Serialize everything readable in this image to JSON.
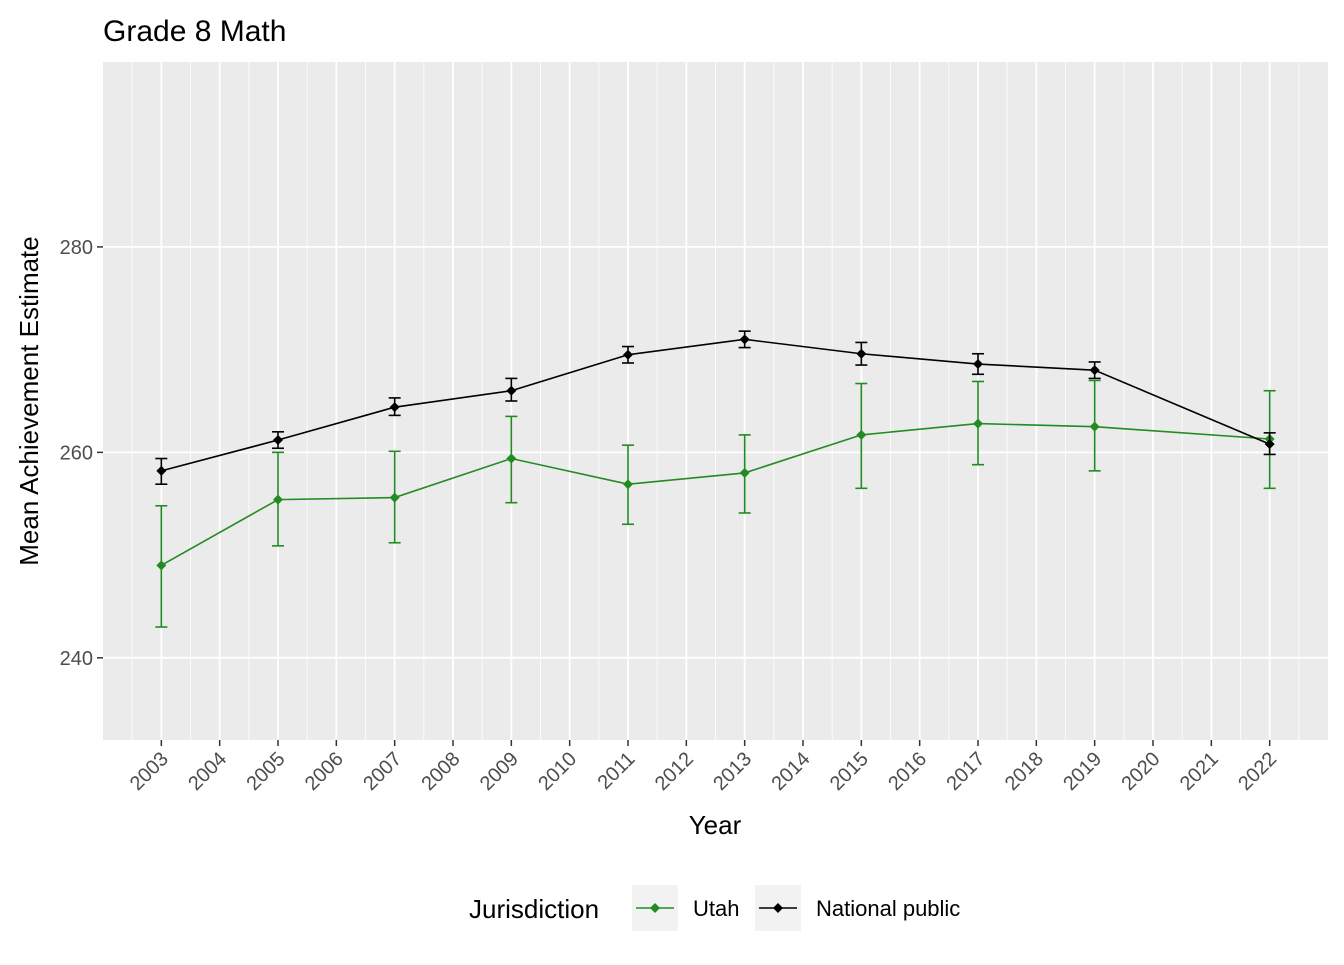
{
  "chart_data": {
    "type": "line",
    "title": "Grade 8 Math",
    "xlabel": "Year",
    "ylabel": "Mean Achievement Estimate",
    "xlim": [
      2002,
      2023
    ],
    "ylim": [
      232,
      298
    ],
    "x_ticks": [
      2003,
      2004,
      2005,
      2006,
      2007,
      2008,
      2009,
      2010,
      2011,
      2012,
      2013,
      2014,
      2015,
      2016,
      2017,
      2018,
      2019,
      2020,
      2021,
      2022
    ],
    "y_ticks": [
      240,
      260,
      280
    ],
    "grid": true,
    "legend": {
      "title": "Jurisdiction",
      "placement": "bottom"
    },
    "series": [
      {
        "name": "Utah",
        "color": "#228B22",
        "x": [
          2003,
          2005,
          2007,
          2009,
          2011,
          2013,
          2015,
          2017,
          2019,
          2022
        ],
        "y": [
          249.0,
          255.4,
          255.6,
          259.4,
          256.9,
          258.0,
          261.7,
          262.8,
          262.5,
          261.3
        ],
        "lower": [
          243.0,
          250.9,
          251.2,
          255.1,
          253.0,
          254.1,
          256.5,
          258.8,
          258.2,
          256.5
        ],
        "upper": [
          254.8,
          260.0,
          260.1,
          263.5,
          260.7,
          261.7,
          266.7,
          266.9,
          267.0,
          266.0
        ]
      },
      {
        "name": "National public",
        "color": "#000000",
        "x": [
          2003,
          2005,
          2007,
          2009,
          2011,
          2013,
          2015,
          2017,
          2019,
          2022
        ],
        "y": [
          258.2,
          261.2,
          264.4,
          266.0,
          269.5,
          271.0,
          269.6,
          268.6,
          268.0,
          260.8
        ],
        "lower": [
          256.9,
          260.4,
          263.6,
          265.0,
          268.7,
          270.2,
          268.5,
          267.6,
          267.2,
          259.8
        ],
        "upper": [
          259.4,
          262.0,
          265.3,
          267.2,
          270.3,
          271.8,
          270.7,
          269.6,
          268.8,
          261.9
        ]
      }
    ]
  }
}
